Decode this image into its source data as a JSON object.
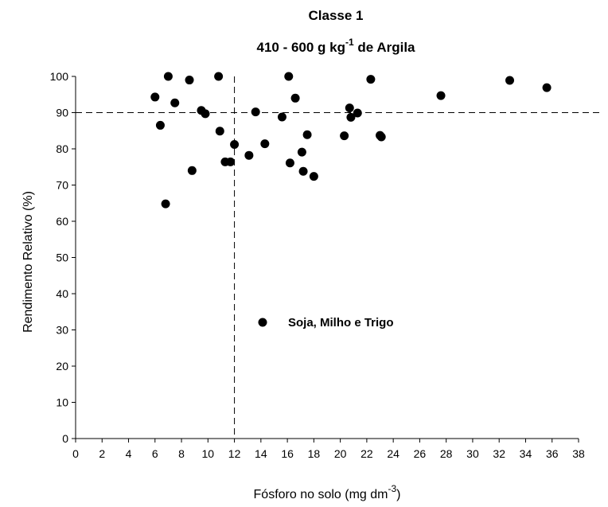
{
  "chart_data": {
    "type": "scatter",
    "title": "Classe 1",
    "subtitle_main": "410 - 600 g kg",
    "subtitle_sup": "-1",
    "subtitle_tail": " de Argila",
    "xlabel_main": "Fósforo no solo (mg dm",
    "xlabel_sup": "-3",
    "xlabel_tail": ")",
    "ylabel": "Rendimento Relativo (%)",
    "xlim": [
      0,
      38
    ],
    "ylim": [
      0,
      100
    ],
    "x_ticks": [
      "0",
      "2",
      "4",
      "6",
      "8",
      "10",
      "12",
      "14",
      "16",
      "18",
      "20",
      "22",
      "24",
      "26",
      "28",
      "30",
      "32",
      "34",
      "36",
      "38"
    ],
    "y_ticks": [
      "0",
      "10",
      "20",
      "30",
      "40",
      "50",
      "60",
      "70",
      "80",
      "90",
      "100"
    ],
    "reference_lines": {
      "x": 12,
      "y": 90
    },
    "grid": false,
    "legend_position": "center",
    "series": [
      {
        "name": "Soja, Milho e Trigo",
        "color": "#000000",
        "marker": "circle",
        "points": [
          [
            6.0,
            94.3
          ],
          [
            6.4,
            86.5
          ],
          [
            6.8,
            64.8
          ],
          [
            7.0,
            100.0
          ],
          [
            7.5,
            92.7
          ],
          [
            8.6,
            99.0
          ],
          [
            8.8,
            74.0
          ],
          [
            9.5,
            90.6
          ],
          [
            9.8,
            89.7
          ],
          [
            10.8,
            100.0
          ],
          [
            10.9,
            84.9
          ],
          [
            11.3,
            76.4
          ],
          [
            11.7,
            76.4
          ],
          [
            12.0,
            81.2
          ],
          [
            13.1,
            78.2
          ],
          [
            13.6,
            90.2
          ],
          [
            14.3,
            81.4
          ],
          [
            15.6,
            88.8
          ],
          [
            16.1,
            100.0
          ],
          [
            16.2,
            76.1
          ],
          [
            16.6,
            94.0
          ],
          [
            17.1,
            79.1
          ],
          [
            17.2,
            73.8
          ],
          [
            17.5,
            83.9
          ],
          [
            18.0,
            72.4
          ],
          [
            20.3,
            83.6
          ],
          [
            20.7,
            91.3
          ],
          [
            20.8,
            88.7
          ],
          [
            21.3,
            89.9
          ],
          [
            22.3,
            99.2
          ],
          [
            23.0,
            83.7
          ],
          [
            23.1,
            83.3
          ],
          [
            27.6,
            94.7
          ],
          [
            32.8,
            98.9
          ],
          [
            35.6,
            96.9
          ]
        ]
      }
    ]
  }
}
